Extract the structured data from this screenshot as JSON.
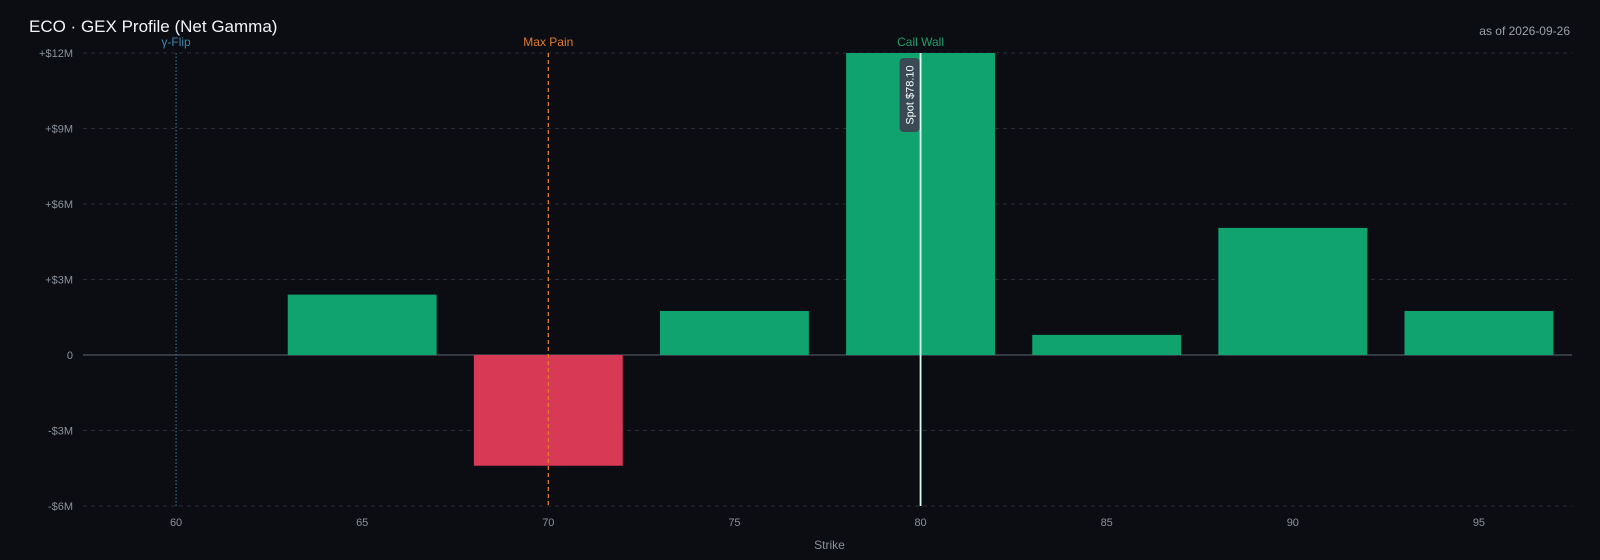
{
  "header": {
    "title": "ECO · GEX Profile (Net Gamma)",
    "as_of": "as of 2026-09-26"
  },
  "chart_data": {
    "type": "bar",
    "title": "ECO · GEX Profile (Net Gamma)",
    "xlabel": "Strike",
    "ylabel": "",
    "x": [
      60,
      65,
      70,
      75,
      80,
      85,
      90,
      95
    ],
    "values": [
      0,
      2400000,
      -4400000,
      1750000,
      12000000,
      800000,
      5050000,
      1750000
    ],
    "xlim": [
      57.5,
      97.5
    ],
    "ylim": [
      -6000000,
      12000000
    ],
    "x_ticks": [
      60,
      65,
      70,
      75,
      80,
      85,
      90,
      95
    ],
    "x_tick_labels": [
      "60",
      "65",
      "70",
      "75",
      "80",
      "85",
      "90",
      "95"
    ],
    "y_ticks": [
      12000000,
      9000000,
      6000000,
      3000000,
      0,
      -3000000,
      -6000000
    ],
    "y_tick_labels": [
      "+$12M",
      "+$9M",
      "+$6M",
      "+$3M",
      "0",
      "-$3M",
      "-$6M"
    ],
    "grid": true,
    "colors": {
      "positive": "#10a26f",
      "negative": "#d83a56",
      "gamma_flip": "#3f86a8",
      "max_pain": "#e07b28",
      "call_wall": "#1f9d6a",
      "spot": "#d9fff0",
      "spot_badge": "#3c4652",
      "grid": "#2a2f37",
      "zero_line": "#5c6370"
    },
    "markers": [
      {
        "name": "gamma-flip",
        "label": "γ-Flip",
        "x": 60,
        "style": "dotted"
      },
      {
        "name": "max-pain",
        "label": "Max Pain",
        "x": 70,
        "style": "dashed"
      },
      {
        "name": "call-wall",
        "label": "Call Wall",
        "x": 80,
        "style": "none"
      }
    ],
    "spot": {
      "label": "Spot $78.10",
      "x": 80
    }
  }
}
